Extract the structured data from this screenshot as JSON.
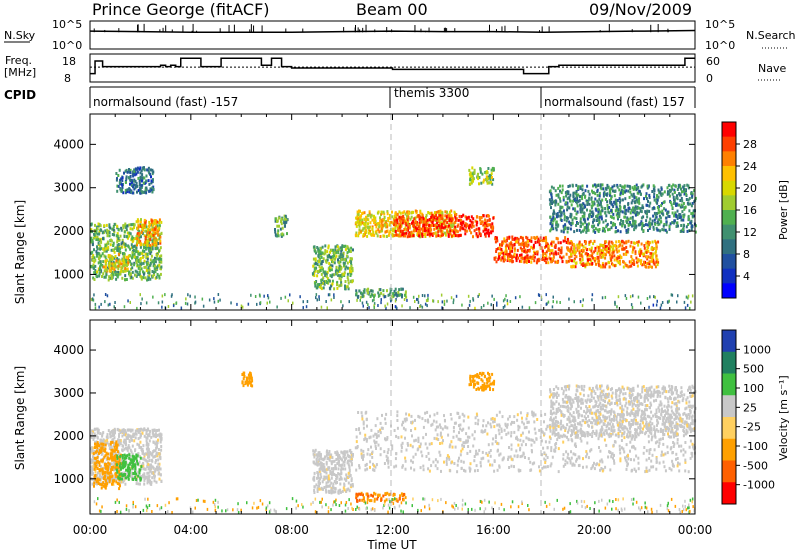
{
  "header": {
    "station": "Prince George (fitACF)",
    "beam": "Beam 00",
    "date": "09/Nov/2009"
  },
  "top_panels": {
    "nsky_label": "N.Sky",
    "nsky_ticks": [
      "10^5",
      "10^0"
    ],
    "nsearch_label": "N.Search",
    "freq_label": "Freq.",
    "freq_unit": "[MHz]",
    "freq_ticks": [
      "18",
      "8"
    ],
    "nave_label": "Nave",
    "nave_ticks": [
      "60",
      "0"
    ],
    "cpid_label": "CPID",
    "cpid_segments": [
      {
        "label": "normalsound (fast) -157"
      },
      {
        "label": "themis 3300"
      },
      {
        "label": "normalsound (fast) 157"
      }
    ]
  },
  "axes": {
    "xlabel": "Time UT",
    "xticks": [
      "00:00",
      "04:00",
      "08:00",
      "12:00",
      "16:00",
      "20:00",
      "00:00"
    ],
    "ylabel": "Slant Range [km]",
    "yticks": [
      "4000",
      "3000",
      "2000",
      "1000"
    ]
  },
  "power_colorbar": {
    "label": "Power [dB]",
    "ticks": [
      "28",
      "24",
      "20",
      "16",
      "12",
      "8",
      "4"
    ],
    "colors": [
      "#ff0000",
      "#ff4000",
      "#ff8000",
      "#ffc000",
      "#d8d800",
      "#a0cc30",
      "#50b050",
      "#409070",
      "#307080",
      "#2050a0",
      "#1030c0",
      "#0000ff"
    ]
  },
  "velocity_colorbar": {
    "label": "Velocity [m s⁻¹]",
    "ticks": [
      "1000",
      "500",
      "100",
      "25",
      "-25",
      "-100",
      "-500",
      "-1000"
    ],
    "colors": [
      "#2040b0",
      "#208060",
      "#40c040",
      "#c8c8c8",
      "#ffd060",
      "#ffa000",
      "#ff6000",
      "#ff0000"
    ]
  },
  "chart_data": [
    {
      "type": "line",
      "title": "N.Sky",
      "x_unit": "hours UT",
      "xlim": [
        0,
        24
      ],
      "ylim": [
        0,
        5
      ],
      "y_scale": "log10 (10^0 to 10^5)",
      "series": [
        {
          "x": [
            0,
            2,
            4,
            6,
            8,
            10,
            12,
            14,
            16,
            18,
            20,
            22,
            24
          ],
          "y": [
            3.2,
            3.1,
            3.0,
            3.0,
            3.0,
            3.1,
            3.2,
            3.1,
            3.1,
            3.0,
            3.1,
            3.2,
            3.3
          ]
        }
      ]
    },
    {
      "type": "line",
      "title": "Freq.",
      "x_unit": "hours UT",
      "xlim": [
        0,
        24
      ],
      "ylim": [
        8,
        18
      ],
      "series": [
        {
          "x": [
            0,
            0.2,
            0.2,
            0.5,
            0.5,
            2.8,
            2.8,
            3.0,
            3.0,
            3.2,
            3.2,
            3.4,
            3.4,
            3.6,
            3.6,
            4.4,
            4.4,
            5.2,
            5.2,
            6.8,
            6.8,
            7.2,
            7.2,
            7.6,
            7.6,
            8.0,
            8.0,
            12.0,
            12.0,
            15.6,
            15.6,
            17.2,
            17.2,
            18.2,
            18.2,
            18.6,
            18.6,
            23.6,
            23.6,
            24.0
          ],
          "y": [
            11,
            11,
            15.5,
            15.5,
            13.5,
            13.5,
            14,
            14,
            13.5,
            13.5,
            14,
            14,
            13.5,
            13.5,
            16.5,
            16.5,
            13.5,
            13.5,
            16.5,
            16.5,
            14,
            14,
            16.5,
            16.5,
            13.5,
            13.5,
            13,
            13,
            12.5,
            12.5,
            12.5,
            12.5,
            11,
            11,
            13.5,
            13.5,
            14,
            14,
            16.5,
            16.5
          ]
        },
        {
          "x": [
            0,
            24
          ],
          "y": [
            13.3,
            13.3
          ]
        }
      ]
    },
    {
      "type": "heatmap",
      "title": "Power",
      "xlabel": "Time UT",
      "ylabel": "Slant Range [km]",
      "xlim": [
        0,
        24
      ],
      "ylim": [
        180,
        4700
      ],
      "value_unit": "dB",
      "regions": [
        {
          "t": [
            0.0,
            2.8
          ],
          "r": [
            900,
            2200
          ],
          "value": 14
        },
        {
          "t": [
            1.8,
            2.8
          ],
          "r": [
            1700,
            2300
          ],
          "value": 22
        },
        {
          "t": [
            0.5,
            1.5
          ],
          "r": [
            1100,
            1500
          ],
          "value": 20
        },
        {
          "t": [
            1.0,
            2.5
          ],
          "r": [
            2900,
            3500
          ],
          "value": 8
        },
        {
          "t": [
            7.3,
            7.8
          ],
          "r": [
            1900,
            2400
          ],
          "value": 12
        },
        {
          "t": [
            8.8,
            10.4
          ],
          "r": [
            700,
            1700
          ],
          "value": 14
        },
        {
          "t": [
            10.5,
            12.5
          ],
          "r": [
            500,
            700
          ],
          "value": 12
        },
        {
          "t": [
            10.5,
            14.5
          ],
          "r": [
            1900,
            2500
          ],
          "value": 20
        },
        {
          "t": [
            12.0,
            16.0
          ],
          "r": [
            1900,
            2400
          ],
          "value": 28
        },
        {
          "t": [
            16.0,
            19.0
          ],
          "r": [
            1300,
            1900
          ],
          "value": 26
        },
        {
          "t": [
            19.0,
            22.5
          ],
          "r": [
            1200,
            1800
          ],
          "value": 24
        },
        {
          "t": [
            18.2,
            24.0
          ],
          "r": [
            2000,
            3100
          ],
          "value": 10
        },
        {
          "t": [
            15.0,
            16.0
          ],
          "r": [
            3100,
            3500
          ],
          "value": 16
        }
      ]
    },
    {
      "type": "heatmap",
      "title": "Velocity",
      "xlabel": "Time UT",
      "ylabel": "Slant Range [km]",
      "xlim": [
        0,
        24
      ],
      "ylim": [
        180,
        4700
      ],
      "value_unit": "m s-1",
      "regions": [
        {
          "t": [
            0.0,
            2.8
          ],
          "r": [
            900,
            2200
          ],
          "value": 0
        },
        {
          "t": [
            0.1,
            1.2
          ],
          "r": [
            800,
            1900
          ],
          "value": -150
        },
        {
          "t": [
            1.0,
            2.0
          ],
          "r": [
            1000,
            1600
          ],
          "value": 120
        },
        {
          "t": [
            6.0,
            6.4
          ],
          "r": [
            3200,
            3500
          ],
          "value": -200
        },
        {
          "t": [
            8.8,
            10.4
          ],
          "r": [
            700,
            1700
          ],
          "value": 0
        },
        {
          "t": [
            10.5,
            12.5
          ],
          "r": [
            500,
            700
          ],
          "value": -300
        },
        {
          "t": [
            10.5,
            24.0
          ],
          "r": [
            1200,
            2600
          ],
          "value": 0
        },
        {
          "t": [
            15.0,
            16.0
          ],
          "r": [
            3100,
            3500
          ],
          "value": -150
        },
        {
          "t": [
            18.2,
            24.0
          ],
          "r": [
            2000,
            3200
          ],
          "value": 0
        }
      ]
    }
  ]
}
